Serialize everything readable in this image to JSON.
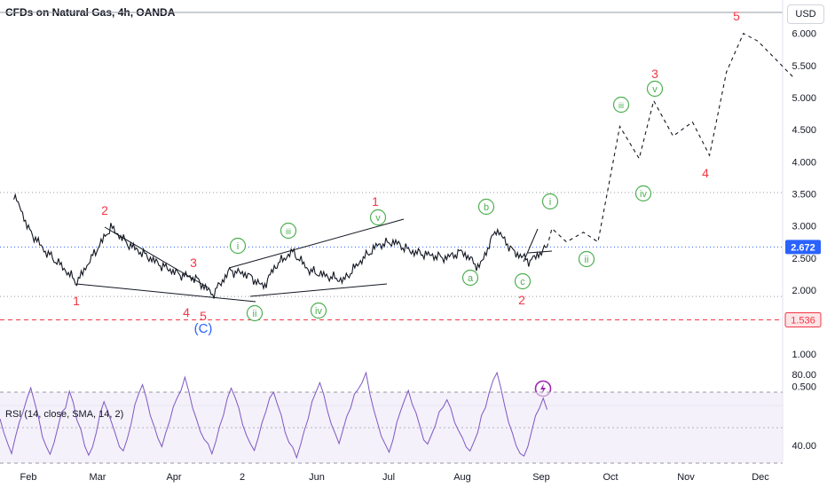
{
  "header": {
    "title": "CFDs on Natural Gas, 4h, OANDA",
    "currency_button": "USD"
  },
  "price_axis": {
    "ticks": [
      "6.000",
      "5.500",
      "5.000",
      "4.500",
      "4.000",
      "3.500",
      "3.000",
      "2.500",
      "2.000",
      "1.000",
      "0.500"
    ],
    "current_price_label": "2.672",
    "current_price_color": "#2962ff",
    "level_label": "1.536",
    "level_color": "#f23645"
  },
  "time_axis": {
    "ticks": [
      "Feb",
      "Mar",
      "Apr",
      "2",
      "Jun",
      "Jul",
      "Aug",
      "Sep",
      "Oct",
      "Nov",
      "Dec"
    ]
  },
  "rsi": {
    "label": "RSI (14, close, SMA, 14, 2)",
    "ticks": [
      "80.00",
      "40.00"
    ],
    "line_color": "#7e57c2",
    "band_color": "#ede7f6"
  },
  "wave_labels": {
    "red_color": "#f23645",
    "blue_color": "#2962ff",
    "green_color": "#4caf50",
    "red": [
      "1",
      "2",
      "3",
      "4",
      "5",
      "1",
      "2",
      "3",
      "4",
      "5"
    ],
    "blue": [
      "(C)"
    ],
    "green_circled": [
      "i",
      "ii",
      "iii",
      "iv",
      "v",
      "a",
      "b",
      "c",
      "i",
      "ii",
      "iii",
      "iv",
      "v"
    ]
  },
  "chart_data": {
    "type": "line",
    "title": "CFDs on Natural Gas, 4h, OANDA",
    "xlabel": "",
    "ylabel": "",
    "ylim": [
      0.3,
      6.4
    ],
    "grid": false,
    "series": [
      {
        "x": [
          "Jan 26",
          "Jan 29",
          "Feb 1",
          "Feb 8",
          "Feb 14",
          "Feb 21",
          "Feb 27",
          "Mar 6",
          "Mar 13",
          "Mar 20",
          "Mar 27",
          "Apr 3",
          "Apr 10",
          "Apr 17",
          "Apr 24",
          "May 1",
          "May 8",
          "May 13",
          "May 20",
          "May 27",
          "Jun 3",
          "Jun 10",
          "Jun 17",
          "Jun 24",
          "Jul 1",
          "Jul 8",
          "Jul 15",
          "Jul 22",
          "Jul 29",
          "Aug 5",
          "Aug 12",
          "Aug 19",
          "Aug 26",
          "Sep 2"
        ],
        "values": [
          3.48,
          3.25,
          2.95,
          2.6,
          2.4,
          2.12,
          2.5,
          2.98,
          2.72,
          2.55,
          2.38,
          2.25,
          2.18,
          1.93,
          2.3,
          2.25,
          2.05,
          2.38,
          2.6,
          2.3,
          2.22,
          2.15,
          2.45,
          2.7,
          2.75,
          2.6,
          2.55,
          2.5,
          2.6,
          2.35,
          2.95,
          2.6,
          2.45,
          2.67
        ]
      },
      {
        "x": [
          "Sep 2",
          "Sep 4",
          "Sep 10",
          "Sep 17",
          "Sep 23",
          "Oct 2",
          "Oct 10",
          "Oct 16",
          "Oct 24",
          "Nov 1",
          "Nov 8",
          "Nov 15",
          "Nov 22",
          "Nov 28",
          "Dec 13"
        ],
        "values": [
          2.67,
          2.96,
          2.75,
          2.9,
          2.75,
          4.55,
          4.05,
          4.95,
          4.4,
          4.62,
          4.1,
          5.4,
          6.0,
          5.88,
          5.3
        ]
      }
    ],
    "levels": [
      {
        "value": 3.52,
        "style": "dotted",
        "color": "#9598a1"
      },
      {
        "value": 2.672,
        "style": "dotted",
        "color": "#2962ff"
      },
      {
        "value": 1.9,
        "style": "dotted",
        "color": "#9598a1"
      },
      {
        "value": 1.536,
        "style": "dashed",
        "color": "#f23645"
      }
    ],
    "rsi_ylim": [
      28,
      92
    ],
    "rsi_band": [
      30,
      70
    ],
    "rsi_values": [
      55,
      48,
      40,
      36,
      45,
      52,
      60,
      66,
      72,
      65,
      55,
      45,
      40,
      34,
      42,
      50,
      58,
      62,
      70,
      64,
      55,
      48,
      40,
      35,
      38,
      48,
      58,
      64,
      60,
      52,
      46,
      40,
      36,
      44,
      52,
      62,
      70,
      74,
      66,
      58,
      50,
      44,
      40,
      46,
      54,
      62,
      66,
      72,
      78,
      70,
      62,
      54,
      48,
      44,
      40,
      36,
      42,
      50,
      58,
      66,
      72,
      68,
      60,
      52,
      46,
      40,
      38,
      44,
      52,
      60,
      66,
      70,
      64,
      56,
      48,
      42,
      38,
      34,
      40,
      48,
      56,
      64,
      70,
      76,
      68,
      60,
      52,
      46,
      42,
      48,
      56,
      62,
      68,
      72,
      76,
      80,
      70,
      60,
      52,
      46,
      40,
      36,
      44,
      52,
      60,
      66,
      70,
      64,
      58,
      50,
      44,
      40,
      46,
      52,
      58,
      62,
      66,
      60,
      54,
      48,
      44,
      40,
      36,
      42,
      48,
      56,
      62,
      70,
      76,
      82,
      72,
      62,
      54,
      46,
      40,
      36,
      33,
      40,
      48,
      56,
      62,
      66,
      60
    ]
  }
}
